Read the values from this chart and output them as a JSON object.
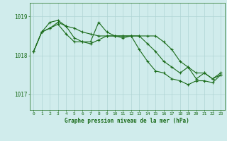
{
  "line1": [
    1018.1,
    1018.6,
    1018.7,
    1018.85,
    1018.75,
    1018.7,
    1018.6,
    1018.55,
    1018.5,
    1018.5,
    1018.5,
    1018.5,
    1018.5,
    1018.5,
    1018.5,
    1018.5,
    1018.35,
    1018.15,
    1017.85,
    1017.7,
    1017.55,
    1017.55,
    1017.4,
    1017.55
  ],
  "line2": [
    1018.1,
    1018.6,
    1018.85,
    1018.9,
    1018.75,
    1018.45,
    1018.35,
    1018.35,
    1018.85,
    1018.6,
    1018.5,
    1018.45,
    1018.5,
    1018.5,
    1018.3,
    1018.1,
    1017.85,
    1017.7,
    1017.55,
    1017.7,
    1017.4,
    1017.55,
    1017.4,
    1017.5
  ],
  "line3": [
    1018.1,
    1018.6,
    1018.7,
    1018.8,
    1018.55,
    1018.35,
    1018.35,
    1018.3,
    1018.4,
    1018.5,
    1018.5,
    1018.5,
    1018.5,
    1018.15,
    1017.85,
    1017.6,
    1017.55,
    1017.4,
    1017.35,
    1017.25,
    1017.35,
    1017.35,
    1017.3,
    1017.5
  ],
  "line_color": "#1a6b1a",
  "background_color": "#d0ecec",
  "grid_color": "#b0d4d4",
  "xlabel": "Graphe pression niveau de la mer (hPa)",
  "xlabel_color": "#1a6b1a",
  "tick_color": "#1a6b1a",
  "ylabel_ticks": [
    1017,
    1018,
    1019
  ],
  "xlim": [
    -0.5,
    23.5
  ],
  "ylim": [
    1016.6,
    1019.35
  ],
  "xticks": [
    0,
    1,
    2,
    3,
    4,
    5,
    6,
    7,
    8,
    9,
    10,
    11,
    12,
    13,
    14,
    15,
    16,
    17,
    18,
    19,
    20,
    21,
    22,
    23
  ],
  "marker": "+",
  "markersize": 3.5,
  "linewidth": 0.8
}
